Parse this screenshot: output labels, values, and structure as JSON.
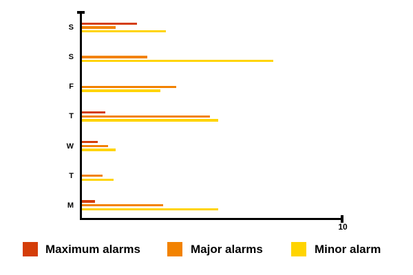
{
  "chart_data": {
    "type": "bar",
    "orientation": "horizontal",
    "categories": [
      "S",
      "S",
      "F",
      "T",
      "W",
      "T",
      "M"
    ],
    "series": [
      {
        "name": "Maximum alarms",
        "color": "#D43D08",
        "values": [
          2.1,
          0,
          0,
          0.9,
          0.6,
          0,
          0.5
        ]
      },
      {
        "name": "Major alarms",
        "color": "#F28200",
        "values": [
          1.3,
          2.5,
          3.6,
          4.9,
          1.0,
          0.8,
          3.1
        ]
      },
      {
        "name": "Minor alarm",
        "color": "#FFD400",
        "values": [
          3.2,
          7.3,
          3.0,
          5.2,
          1.3,
          1.2,
          5.2
        ]
      }
    ],
    "xlim": [
      0,
      10
    ],
    "x_axis_end_label": "10",
    "grid": false,
    "legend_position": "bottom",
    "axis_color": "#000000",
    "background_color": "#FFFFFF"
  }
}
